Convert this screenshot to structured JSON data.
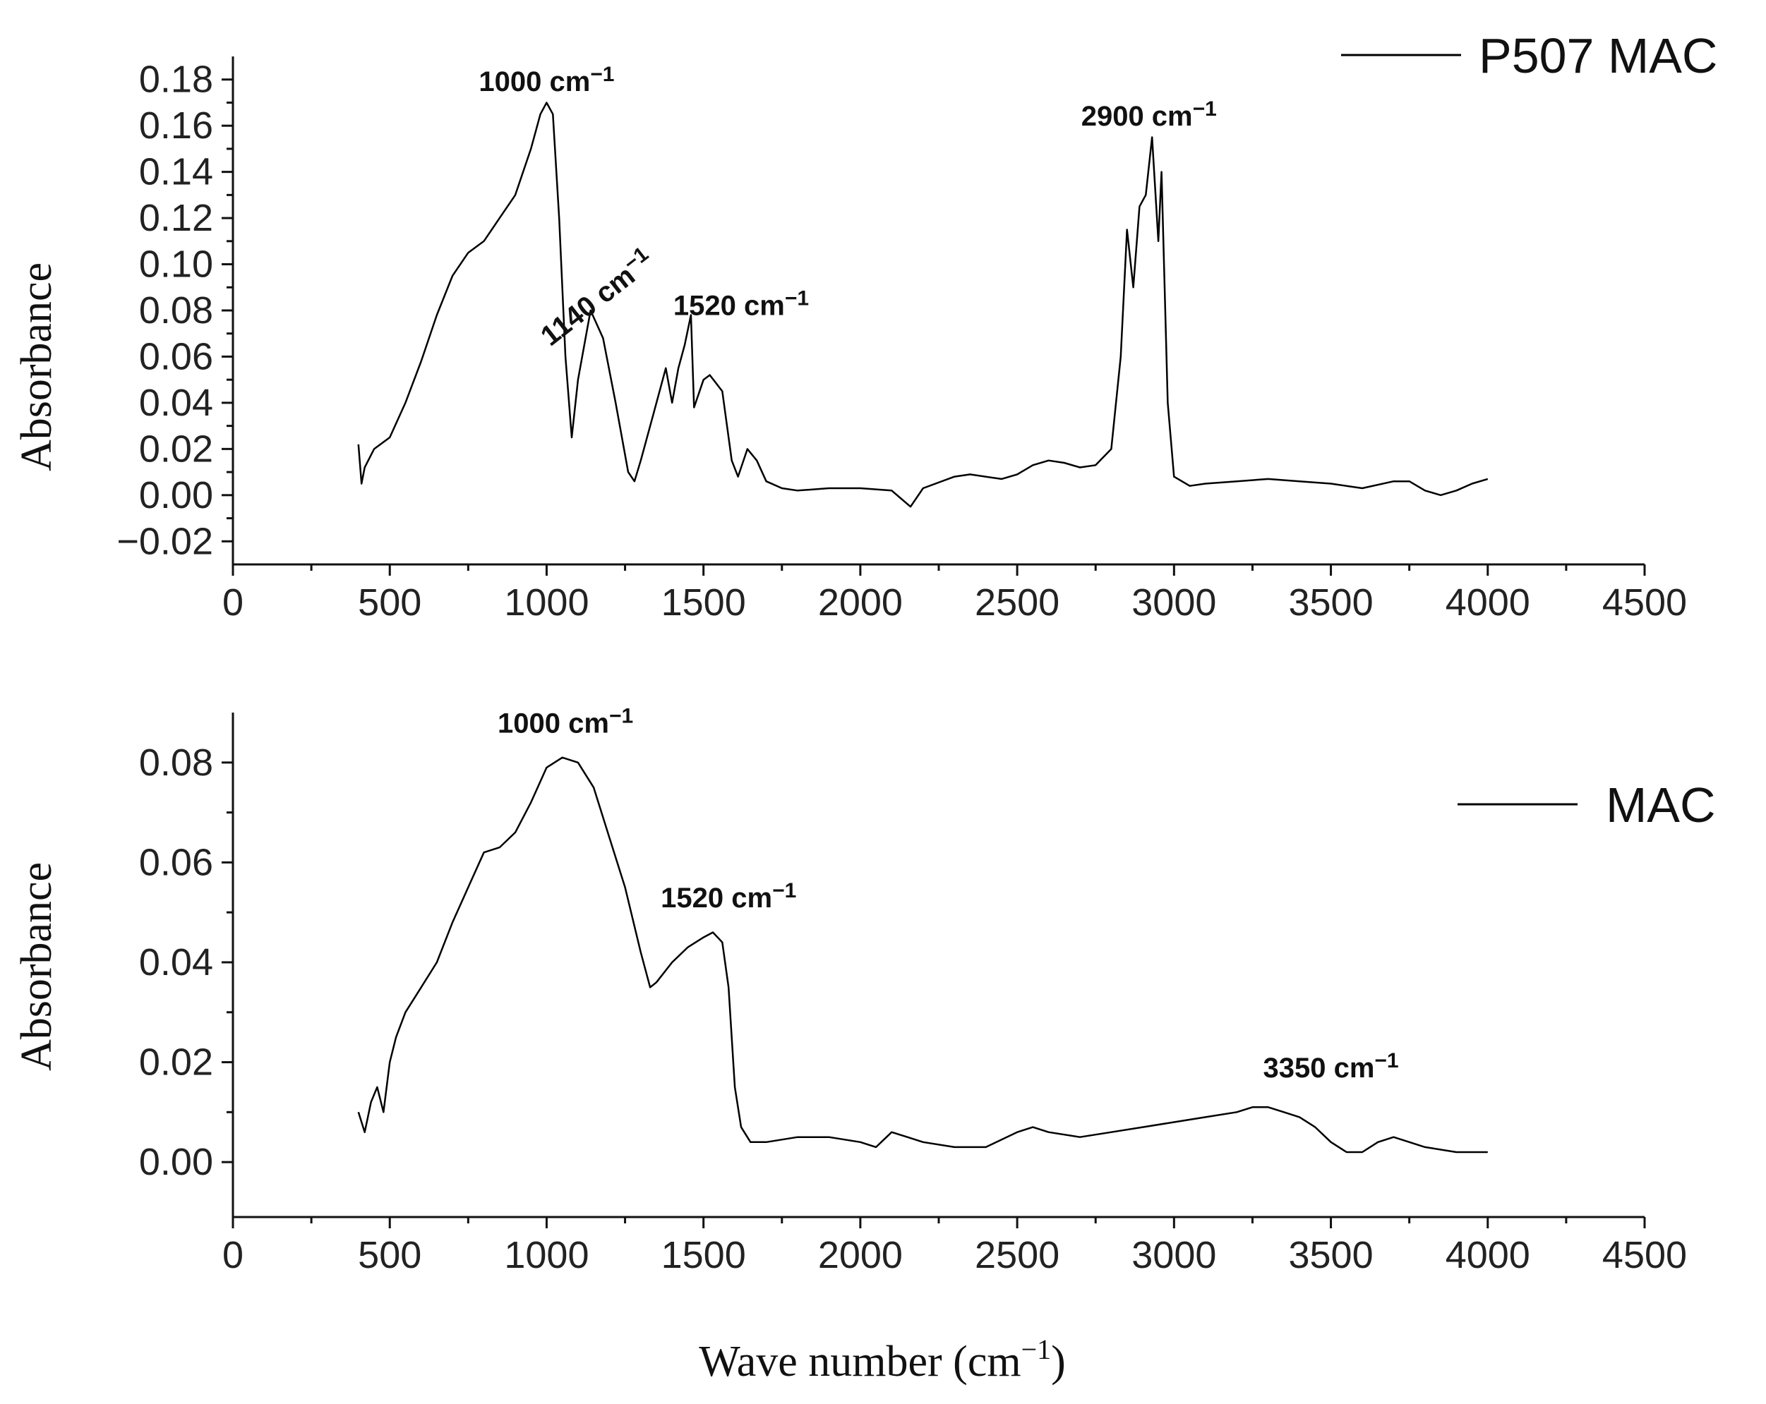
{
  "chart_data": [
    {
      "type": "line",
      "panel": "top",
      "title": "",
      "xlabel": "",
      "ylabel": "Absorbance",
      "xlim": [
        0,
        4500
      ],
      "ylim": [
        -0.03,
        0.19
      ],
      "xticks": [
        0,
        500,
        1000,
        1500,
        2000,
        2500,
        3000,
        3500,
        4000,
        4500
      ],
      "xtick_labels": [
        "0",
        "500",
        "1000",
        "1500",
        "2000",
        "2500",
        "3000",
        "3500",
        "4000",
        "4500"
      ],
      "yticks": [
        -0.02,
        0.0,
        0.02,
        0.04,
        0.06,
        0.08,
        0.1,
        0.12,
        0.14,
        0.16,
        0.18
      ],
      "ytick_labels": [
        "−0.02",
        "0.00",
        "0.02",
        "0.04",
        "0.06",
        "0.08",
        "0.10",
        "0.12",
        "0.14",
        "0.16",
        "0.18"
      ],
      "legend": {
        "position": "top-right",
        "entries": [
          "P507 MAC"
        ]
      },
      "series": [
        {
          "name": "P507 MAC",
          "x": [
            400,
            410,
            420,
            450,
            500,
            550,
            600,
            650,
            700,
            750,
            800,
            850,
            900,
            950,
            980,
            1000,
            1020,
            1040,
            1060,
            1080,
            1100,
            1140,
            1180,
            1220,
            1260,
            1280,
            1300,
            1340,
            1380,
            1400,
            1420,
            1440,
            1460,
            1470,
            1500,
            1520,
            1560,
            1590,
            1610,
            1640,
            1670,
            1700,
            1750,
            1800,
            1900,
            2000,
            2100,
            2160,
            2200,
            2300,
            2350,
            2450,
            2500,
            2550,
            2600,
            2650,
            2700,
            2750,
            2800,
            2830,
            2850,
            2870,
            2890,
            2910,
            2930,
            2950,
            2960,
            2980,
            3000,
            3050,
            3100,
            3200,
            3300,
            3400,
            3500,
            3600,
            3700,
            3750,
            3800,
            3850,
            3900,
            3950,
            4000
          ],
          "y": [
            0.022,
            0.005,
            0.012,
            0.02,
            0.025,
            0.04,
            0.058,
            0.078,
            0.095,
            0.105,
            0.11,
            0.12,
            0.13,
            0.15,
            0.165,
            0.17,
            0.165,
            0.12,
            0.06,
            0.025,
            0.05,
            0.08,
            0.068,
            0.04,
            0.01,
            0.006,
            0.015,
            0.035,
            0.055,
            0.04,
            0.055,
            0.065,
            0.078,
            0.038,
            0.05,
            0.052,
            0.045,
            0.015,
            0.008,
            0.02,
            0.015,
            0.006,
            0.003,
            0.002,
            0.003,
            0.003,
            0.002,
            -0.005,
            0.003,
            0.008,
            0.009,
            0.007,
            0.009,
            0.013,
            0.015,
            0.014,
            0.012,
            0.013,
            0.02,
            0.06,
            0.115,
            0.09,
            0.125,
            0.13,
            0.155,
            0.11,
            0.14,
            0.04,
            0.008,
            0.004,
            0.005,
            0.006,
            0.007,
            0.006,
            0.005,
            0.003,
            0.006,
            0.006,
            0.002,
            0.0,
            0.002,
            0.005,
            0.007
          ]
        }
      ],
      "annotations": [
        {
          "text": "1000 cm",
          "sup": "−1",
          "x": 1000,
          "y": 0.175
        },
        {
          "text": "1140 cm",
          "sup": "−1",
          "x": 1180,
          "y": 0.082
        },
        {
          "text": "1520 cm",
          "sup": "−1",
          "x": 1620,
          "y": 0.078
        },
        {
          "text": "2900 cm",
          "sup": "−1",
          "x": 2920,
          "y": 0.16
        }
      ]
    },
    {
      "type": "line",
      "panel": "bottom",
      "title": "",
      "xlabel": "Wave number (cm⁻¹)",
      "ylabel": "Absorbance",
      "xlim": [
        0,
        4500
      ],
      "ylim": [
        -0.011,
        0.09
      ],
      "xticks": [
        0,
        500,
        1000,
        1500,
        2000,
        2500,
        3000,
        3500,
        4000,
        4500
      ],
      "xtick_labels": [
        "0",
        "500",
        "1000",
        "1500",
        "2000",
        "2500",
        "3000",
        "3500",
        "4000",
        "4500"
      ],
      "yticks": [
        0.0,
        0.02,
        0.04,
        0.06,
        0.08
      ],
      "ytick_labels": [
        "0.00",
        "0.02",
        "0.04",
        "0.06",
        "0.08"
      ],
      "legend": {
        "position": "top-right",
        "entries": [
          "MAC"
        ]
      },
      "series": [
        {
          "name": "MAC",
          "x": [
            400,
            420,
            440,
            460,
            480,
            500,
            520,
            550,
            600,
            650,
            700,
            750,
            800,
            850,
            900,
            950,
            1000,
            1050,
            1100,
            1150,
            1200,
            1250,
            1300,
            1330,
            1350,
            1400,
            1450,
            1500,
            1530,
            1560,
            1580,
            1600,
            1620,
            1650,
            1700,
            1800,
            1900,
            2000,
            2050,
            2100,
            2150,
            2200,
            2300,
            2400,
            2500,
            2550,
            2600,
            2700,
            2800,
            2900,
            3000,
            3100,
            3200,
            3250,
            3300,
            3350,
            3400,
            3450,
            3500,
            3550,
            3600,
            3650,
            3700,
            3750,
            3800,
            3900,
            4000
          ],
          "y": [
            0.01,
            0.006,
            0.012,
            0.015,
            0.01,
            0.02,
            0.025,
            0.03,
            0.035,
            0.04,
            0.048,
            0.055,
            0.062,
            0.063,
            0.066,
            0.072,
            0.079,
            0.081,
            0.08,
            0.075,
            0.065,
            0.055,
            0.042,
            0.035,
            0.036,
            0.04,
            0.043,
            0.045,
            0.046,
            0.044,
            0.035,
            0.015,
            0.007,
            0.004,
            0.004,
            0.005,
            0.005,
            0.004,
            0.003,
            0.006,
            0.005,
            0.004,
            0.003,
            0.003,
            0.006,
            0.007,
            0.006,
            0.005,
            0.006,
            0.007,
            0.008,
            0.009,
            0.01,
            0.011,
            0.011,
            0.01,
            0.009,
            0.007,
            0.004,
            0.002,
            0.002,
            0.004,
            0.005,
            0.004,
            0.003,
            0.002,
            0.002
          ]
        }
      ],
      "annotations": [
        {
          "text": "1000 cm",
          "sup": "−1",
          "x": 1060,
          "y": 0.086
        },
        {
          "text": "1520 cm",
          "sup": "−1",
          "x": 1580,
          "y": 0.051
        },
        {
          "text": "3350 cm",
          "sup": "−1",
          "x": 3500,
          "y": 0.017
        }
      ]
    }
  ]
}
